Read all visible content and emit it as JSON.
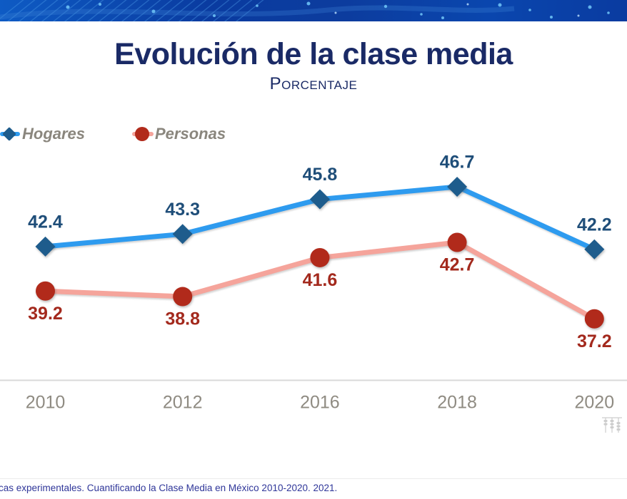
{
  "slide": {
    "title": "Evolución de la clase media",
    "subtitle": "Porcentaje",
    "footer_text": "cas experimentales. Cuantificando la Clase Media en México 2010-2020. 2021."
  },
  "colors": {
    "title": "#1A2A66",
    "axis_labels": "#8F8B82",
    "legend_text": "#8A867D",
    "axis_line": "#D9D9D9",
    "footer_text": "#2F3699"
  },
  "chart_data": {
    "type": "line",
    "categories": [
      "2010",
      "2012",
      "2016",
      "2018",
      "2020"
    ],
    "series": [
      {
        "name": "Hogares",
        "values": [
          42.4,
          43.3,
          45.8,
          46.7,
          42.2
        ],
        "line_color": "#2E9BEF",
        "marker": "diamond",
        "marker_color": "#1E5C8C",
        "label_color": "#1F4E79",
        "label_position": "above"
      },
      {
        "name": "Personas",
        "values": [
          39.2,
          38.8,
          41.6,
          42.7,
          37.2
        ],
        "line_color": "#F5A49B",
        "marker": "circle",
        "marker_color": "#B12A1B",
        "label_color": "#A3291D",
        "label_position": "below"
      }
    ],
    "title": "Evolución de la clase media",
    "subtitle": "Porcentaje",
    "xlabel": "",
    "ylabel": "",
    "ylim": [
      36,
      48
    ],
    "grid": false,
    "data_labels": true,
    "legend_position": "top-left"
  }
}
